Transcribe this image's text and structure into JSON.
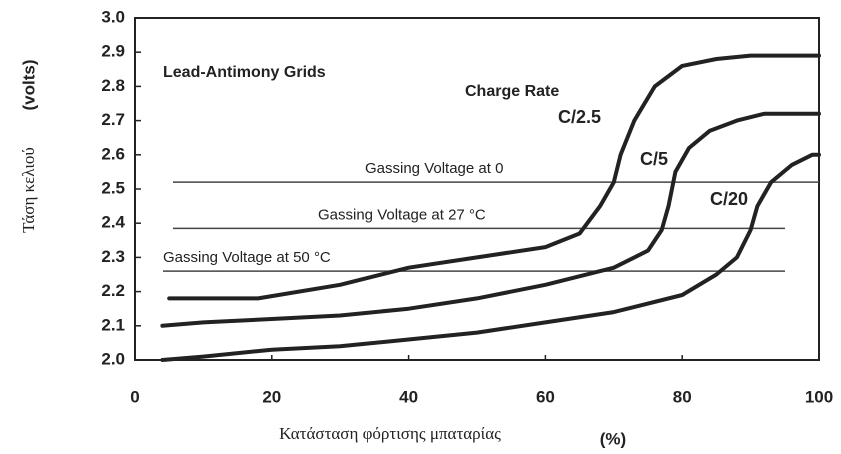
{
  "chart_data": {
    "type": "line",
    "annotations": [
      "Lead-Antimony Grids",
      "Charge Rate"
    ],
    "ylabel": [
      "Τάση κελιού",
      "(volts)"
    ],
    "xlabel": [
      "Κατάσταση φόρτισης μπαταρίας",
      "(%)"
    ],
    "xlim": [
      0,
      100
    ],
    "xticks": [
      0,
      20,
      40,
      60,
      80,
      100
    ],
    "ylim": [
      2.0,
      3.0
    ],
    "yticks": [
      {
        "value": 2.0,
        "label": "2.0"
      },
      2.1,
      2.2,
      2.3,
      2.4,
      2.5,
      2.6,
      2.7,
      2.8,
      2.9,
      {
        "value": 3.0,
        "label": "3.0"
      }
    ],
    "reference_lines": [
      {
        "label": "Gassing Voltage at 0",
        "value": 2.52
      },
      {
        "label": "Gassing Voltage at 27 °C",
        "value": 2.385
      },
      {
        "label": "Gassing Voltage at 50 °C",
        "value": 2.26
      }
    ],
    "series": [
      {
        "name": "C/2.5",
        "color": "#222222",
        "x": [
          5,
          10,
          18,
          30,
          40,
          50,
          60,
          65,
          68,
          70,
          71,
          73,
          76,
          80,
          85,
          90,
          100
        ],
        "values": [
          2.18,
          2.18,
          2.18,
          2.22,
          2.27,
          2.3,
          2.33,
          2.37,
          2.45,
          2.52,
          2.6,
          2.7,
          2.8,
          2.86,
          2.88,
          2.89,
          2.89
        ]
      },
      {
        "name": "C/5",
        "color": "#222222",
        "x": [
          4,
          10,
          20,
          30,
          40,
          50,
          60,
          70,
          75,
          77,
          78,
          79,
          81,
          84,
          88,
          92,
          100
        ],
        "values": [
          2.1,
          2.11,
          2.12,
          2.13,
          2.15,
          2.18,
          2.22,
          2.27,
          2.32,
          2.38,
          2.45,
          2.55,
          2.62,
          2.67,
          2.7,
          2.72,
          2.72
        ]
      },
      {
        "name": "C/20",
        "color": "#222222",
        "x": [
          4,
          10,
          20,
          30,
          40,
          50,
          60,
          70,
          80,
          85,
          88,
          90,
          91,
          93,
          96,
          99,
          100
        ],
        "values": [
          2.0,
          2.01,
          2.03,
          2.04,
          2.06,
          2.08,
          2.11,
          2.14,
          2.19,
          2.25,
          2.3,
          2.38,
          2.45,
          2.52,
          2.57,
          2.6,
          2.6
        ]
      }
    ]
  }
}
